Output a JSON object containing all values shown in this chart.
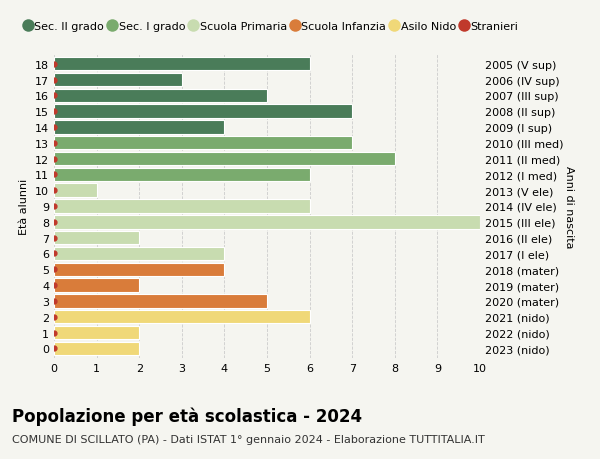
{
  "ages": [
    18,
    17,
    16,
    15,
    14,
    13,
    12,
    11,
    10,
    9,
    8,
    7,
    6,
    5,
    4,
    3,
    2,
    1,
    0
  ],
  "years": [
    "2005 (V sup)",
    "2006 (IV sup)",
    "2007 (III sup)",
    "2008 (II sup)",
    "2009 (I sup)",
    "2010 (III med)",
    "2011 (II med)",
    "2012 (I med)",
    "2013 (V ele)",
    "2014 (IV ele)",
    "2015 (III ele)",
    "2016 (II ele)",
    "2017 (I ele)",
    "2018 (mater)",
    "2019 (mater)",
    "2020 (mater)",
    "2021 (nido)",
    "2022 (nido)",
    "2023 (nido)"
  ],
  "values": [
    6,
    3,
    5,
    7,
    4,
    7,
    8,
    6,
    1,
    6,
    10,
    2,
    4,
    4,
    2,
    5,
    6,
    2,
    2
  ],
  "bar_colors": [
    "#4a7c59",
    "#4a7c59",
    "#4a7c59",
    "#4a7c59",
    "#4a7c59",
    "#7aab6e",
    "#7aab6e",
    "#7aab6e",
    "#c8dcb0",
    "#c8dcb0",
    "#c8dcb0",
    "#c8dcb0",
    "#c8dcb0",
    "#d97c3a",
    "#d97c3a",
    "#d97c3a",
    "#f0d878",
    "#f0d878",
    "#f0d878"
  ],
  "dot_color": "#c0392b",
  "legend_labels": [
    "Sec. II grado",
    "Sec. I grado",
    "Scuola Primaria",
    "Scuola Infanzia",
    "Asilo Nido",
    "Stranieri"
  ],
  "legend_colors": [
    "#4a7c59",
    "#7aab6e",
    "#c8dcb0",
    "#d97c3a",
    "#f0d878",
    "#c0392b"
  ],
  "title": "Popolazione per età scolastica - 2024",
  "subtitle": "COMUNE DI SCILLATO (PA) - Dati ISTAT 1° gennaio 2024 - Elaborazione TUTTITALIA.IT",
  "ylabel": "Età alunni",
  "right_label": "Anni di nascita",
  "xlim": [
    0,
    10
  ],
  "ylim_min": -0.6,
  "ylim_max": 18.6,
  "bg_color": "#f5f5f0",
  "bar_edge_color": "white",
  "grid_color": "#cccccc",
  "title_fontsize": 12,
  "subtitle_fontsize": 8,
  "tick_fontsize": 8,
  "legend_fontsize": 8,
  "label_fontsize": 8
}
